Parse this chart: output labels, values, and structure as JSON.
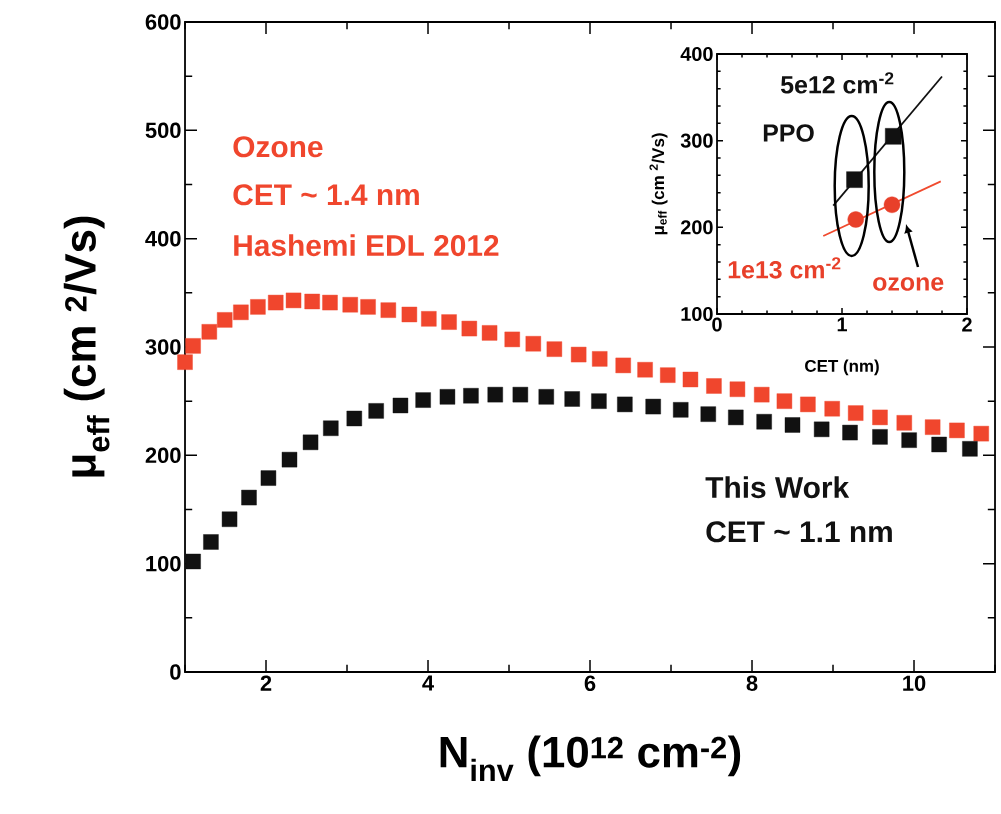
{
  "chart_data": [
    {
      "type": "scatter",
      "xlabel": "N$_{inv}$ (10$^{12}$ cm$^{-2}$)",
      "ylabel": "μ$_{eff}$ (cm $^{2}$/Vs)",
      "xlim": [
        1,
        11
      ],
      "ylim": [
        0,
        600
      ],
      "xticks": [
        {
          "value": 1,
          "label": null
        },
        2,
        {
          "value": 3,
          "label": null
        },
        4,
        {
          "value": 5,
          "label": null
        },
        6,
        {
          "value": 7,
          "label": null
        },
        8,
        {
          "value": 9,
          "label": null
        },
        10,
        {
          "value": 11,
          "label": null
        }
      ],
      "yticks": [
        0,
        {
          "value": 50,
          "label": null
        },
        100,
        {
          "value": 150,
          "label": null
        },
        200,
        {
          "value": 250,
          "label": null
        },
        300,
        {
          "value": 350,
          "label": null
        },
        400,
        {
          "value": 450,
          "label": null
        },
        500,
        {
          "value": 550,
          "label": null
        },
        600
      ],
      "marker": "square",
      "series": [
        {
          "name": "Ozone",
          "color": "#f0462d",
          "x": [
            1.0,
            1.1,
            1.3,
            1.49,
            1.69,
            1.9,
            2.12,
            2.34,
            2.57,
            2.79,
            3.04,
            3.26,
            3.51,
            3.77,
            4.01,
            4.26,
            4.51,
            4.76,
            5.04,
            5.3,
            5.56,
            5.86,
            6.12,
            6.41,
            6.68,
            6.96,
            7.24,
            7.53,
            7.82,
            8.12,
            8.4,
            8.69,
            8.99,
            9.28,
            9.58,
            9.88,
            10.23,
            10.53,
            10.83
          ],
          "values": [
            286,
            301,
            314,
            325,
            332,
            337,
            341,
            343,
            342,
            341,
            339,
            337,
            334,
            330,
            326,
            323,
            317,
            313,
            307,
            303,
            298,
            293,
            289,
            283,
            279,
            274,
            270,
            264,
            261,
            256,
            250,
            247,
            243,
            239,
            235,
            230,
            226,
            223,
            220
          ]
        },
        {
          "name": "This Work",
          "color": "#111111",
          "x": [
            1.1,
            1.32,
            1.55,
            1.79,
            2.03,
            2.29,
            2.55,
            2.8,
            3.09,
            3.36,
            3.66,
            3.94,
            4.24,
            4.53,
            4.83,
            5.14,
            5.46,
            5.78,
            6.11,
            6.43,
            6.78,
            7.12,
            7.46,
            7.8,
            8.15,
            8.5,
            8.86,
            9.21,
            9.58,
            9.94,
            10.31,
            10.69
          ],
          "values": [
            102,
            120,
            141,
            161,
            179,
            196,
            212,
            225,
            234,
            241,
            246,
            251,
            254,
            255,
            256,
            256,
            254,
            252,
            250,
            247,
            245,
            242,
            238,
            235,
            231,
            228,
            224,
            221,
            217,
            214,
            210,
            206
          ]
        }
      ],
      "annotations": [
        "CET ~ 1.4 nm",
        "Hashemi EDL 2012",
        "CET ~ 1.1 nm"
      ]
    },
    {
      "type": "scatter",
      "xlabel": "CET (nm)",
      "ylabel": "μ$_{eff}$ (cm $^{2}$/Vs)",
      "xlim": [
        0,
        2
      ],
      "ylim": [
        100,
        400
      ],
      "xticks": [
        0,
        {
          "value": 0.2,
          "label": null
        },
        {
          "value": 0.4,
          "label": null
        },
        {
          "value": 0.6,
          "label": null
        },
        {
          "value": 0.8,
          "label": null
        },
        1,
        {
          "value": 1.2,
          "label": null
        },
        {
          "value": 1.4,
          "label": null
        },
        {
          "value": 1.6,
          "label": null
        },
        {
          "value": 1.8,
          "label": null
        },
        2
      ],
      "yticks": [
        100,
        {
          "value": 120,
          "label": null
        },
        {
          "value": 140,
          "label": null
        },
        {
          "value": 160,
          "label": null
        },
        {
          "value": 180,
          "label": null
        },
        200,
        {
          "value": 220,
          "label": null
        },
        {
          "value": 240,
          "label": null
        },
        {
          "value": 260,
          "label": null
        },
        {
          "value": 280,
          "label": null
        },
        300,
        {
          "value": 320,
          "label": null
        },
        {
          "value": 340,
          "label": null
        },
        {
          "value": 360,
          "label": null
        },
        {
          "value": 380,
          "label": null
        },
        400
      ],
      "series": [
        {
          "name": "PPO",
          "color": "#111111",
          "marker": "square",
          "x": [
            1.1,
            1.41
          ],
          "values": [
            255,
            305
          ]
        },
        {
          "name": "ozone",
          "color": "#e8402a",
          "marker": "circle",
          "x": [
            1.11,
            1.4
          ],
          "values": [
            209,
            226
          ]
        },
        {
          "type": "line",
          "color": "#111111",
          "marker": "none",
          "x": [
            0.93,
            1.8
          ],
          "values": [
            225,
            374
          ]
        },
        {
          "type": "line",
          "color": "#f04a2e",
          "marker": "none",
          "x": [
            0.85,
            1.79
          ],
          "values": [
            190,
            253
          ]
        }
      ],
      "annotations": [
        "5e12 cm$^{-2}$",
        "1e13 cm$^{-2}$"
      ]
    }
  ]
}
